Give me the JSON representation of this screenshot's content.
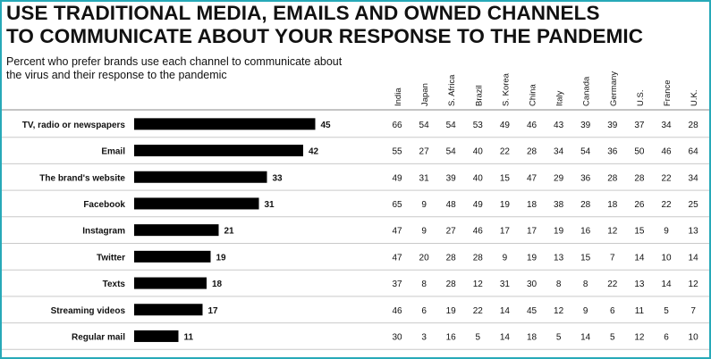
{
  "title_line1": "USE TRADITIONAL MEDIA, EMAILS AND OWNED CHANNELS",
  "title_line2": "TO COMMUNICATE ABOUT YOUR RESPONSE TO THE PANDEMIC",
  "subtitle": "Percent who prefer brands use each channel to communicate about the virus and their response to the pandemic",
  "colors": {
    "bar": "#000000",
    "frame": "#27a9b8",
    "rule": "#c9c9c9",
    "text": "#111111"
  },
  "chart_data": {
    "type": "bar",
    "orientation": "horizontal",
    "categories": [
      "TV, radio or newspapers",
      "Email",
      "The brand's website",
      "Facebook",
      "Instagram",
      "Twitter",
      "Texts",
      "Streaming videos",
      "Regular mail"
    ],
    "values": [
      45,
      42,
      33,
      31,
      21,
      19,
      18,
      17,
      11
    ],
    "grid": false,
    "table": {
      "columns": [
        "India",
        "Japan",
        "S. Africa",
        "Brazil",
        "S. Korea",
        "China",
        "Italy",
        "Canada",
        "Germany",
        "U.S.",
        "France",
        "U.K."
      ],
      "rows": [
        [
          66,
          54,
          54,
          53,
          49,
          46,
          43,
          39,
          39,
          37,
          34,
          28
        ],
        [
          55,
          27,
          54,
          40,
          22,
          28,
          34,
          54,
          36,
          50,
          46,
          64
        ],
        [
          49,
          31,
          39,
          40,
          15,
          47,
          29,
          36,
          28,
          28,
          22,
          34
        ],
        [
          65,
          9,
          48,
          49,
          19,
          18,
          38,
          28,
          18,
          26,
          22,
          25
        ],
        [
          47,
          9,
          27,
          46,
          17,
          17,
          19,
          16,
          12,
          15,
          9,
          13
        ],
        [
          47,
          20,
          28,
          28,
          9,
          19,
          13,
          15,
          7,
          14,
          10,
          14
        ],
        [
          37,
          8,
          28,
          12,
          31,
          30,
          8,
          8,
          22,
          13,
          14,
          12
        ],
        [
          46,
          6,
          19,
          22,
          14,
          45,
          12,
          9,
          6,
          11,
          5,
          7
        ],
        [
          30,
          3,
          16,
          5,
          14,
          18,
          5,
          14,
          5,
          12,
          6,
          10
        ]
      ]
    }
  }
}
